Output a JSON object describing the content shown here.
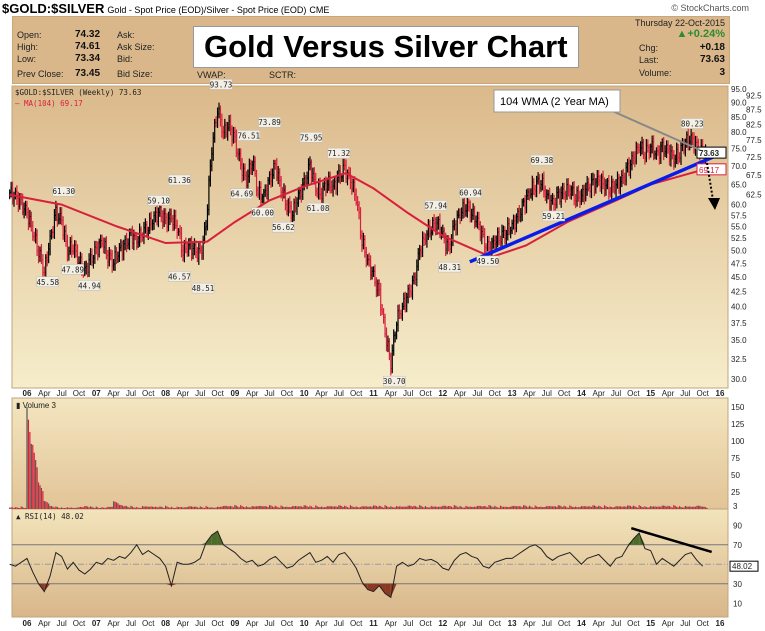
{
  "header": {
    "symbol": "$GOLD:$SILVER",
    "description": "Gold - Spot Price (EOD)/Silver - Spot Price (EOD)",
    "exchange": "CME",
    "credit": "© StockCharts.com",
    "date": "Thursday  22-Oct-2015",
    "pct_change": "▲+0.24%",
    "fields": [
      {
        "label": "Open:",
        "value": "74.32"
      },
      {
        "label": "High:",
        "value": "74.61"
      },
      {
        "label": "Low:",
        "value": "73.34"
      },
      {
        "label": "Prev Close:",
        "value": "73.45"
      }
    ],
    "fields2": [
      "Ask:",
      "Ask Size:",
      "Bid:",
      "Bid Size:"
    ],
    "fields3": [
      "VWAP:",
      "SCTR:"
    ],
    "right_fields": [
      {
        "label": "Chg:",
        "value": "+0.18"
      },
      {
        "label": "Last:",
        "value": "73.63"
      },
      {
        "label": "Volume:",
        "value": "3"
      }
    ]
  },
  "overlay_title": "Gold Versus Silver Chart",
  "colors": {
    "up": "#000000",
    "down": "#d8203a",
    "ma": "#d8203a",
    "trend": "#0a1de8",
    "rsi_up_fill": "#4e6b2a",
    "rsi_down_fill": "#8a3a22",
    "panel_top": "#dbb98b",
    "panel_bottom": "#f6edcb",
    "header_bg": "#d9b78b"
  },
  "chart_data": [
    {
      "type": "ohlc",
      "panel": "price",
      "legend": "$GOLD:$SILVER (Weekly) 73.63",
      "ma_legend": "MA(104) 69.17",
      "scale": "log",
      "ylim": [
        29,
        97
      ],
      "yticks": [
        "95.0",
        "92.5",
        "90.0",
        "87.5",
        "85.0",
        "82.5",
        "80.0",
        "77.5",
        "75.0",
        "72.5",
        "70.0",
        "67.5",
        "65.0",
        "62.5",
        "60.0",
        "57.5",
        "55.0",
        "52.5",
        "50.0",
        "47.5",
        "45.0",
        "42.5",
        "40.0",
        "37.5",
        "35.0",
        "32.5",
        "30.0"
      ],
      "xticks": [
        "06",
        "Apr",
        "Jul",
        "Oct",
        "07",
        "Apr",
        "Jul",
        "Oct",
        "08",
        "Apr",
        "Jul",
        "Oct",
        "09",
        "Apr",
        "Jul",
        "Oct",
        "10",
        "Apr",
        "Jul",
        "Oct",
        "11",
        "Apr",
        "Jul",
        "Oct",
        "12",
        "Apr",
        "Jul",
        "Oct",
        "13",
        "Apr",
        "Jul",
        "Oct",
        "14",
        "Apr",
        "Jul",
        "Oct",
        "15",
        "Apr",
        "Jul",
        "Oct",
        "16"
      ],
      "start": "2005-10",
      "monthly_close": [
        63,
        62,
        60,
        58,
        54,
        50,
        46,
        52,
        58,
        56,
        50,
        51,
        48,
        46,
        48,
        50,
        52,
        49,
        48,
        50,
        51,
        53,
        52,
        54,
        55,
        57,
        58,
        56,
        57,
        55,
        50,
        51,
        50,
        49,
        55,
        75,
        88,
        80,
        82,
        77,
        70,
        66,
        72,
        63,
        62,
        66,
        70,
        64,
        60,
        58,
        62,
        65,
        70,
        64,
        63,
        66,
        64,
        67,
        69,
        66,
        62,
        52,
        48,
        45,
        42,
        36,
        32,
        38,
        40,
        42,
        44,
        50,
        53,
        55,
        56,
        53,
        50,
        55,
        58,
        60,
        58,
        56,
        52,
        50,
        52,
        53,
        54,
        55,
        57,
        60,
        63,
        65,
        66,
        62,
        60,
        62,
        63,
        64,
        62,
        62,
        64,
        65,
        66,
        65,
        64,
        65,
        66,
        69,
        72,
        76,
        74,
        76,
        73,
        75,
        74,
        72,
        74,
        77,
        78,
        75,
        73.63
      ],
      "ma104": [
        [
          2005.75,
          62.4
        ],
        [
          2006.5,
          60
        ],
        [
          2007.3,
          55
        ],
        [
          2008.0,
          51.5
        ],
        [
          2008.6,
          51.8
        ],
        [
          2009.0,
          56
        ],
        [
          2009.5,
          61
        ],
        [
          2010.0,
          64.5
        ],
        [
          2010.6,
          68
        ],
        [
          2011.0,
          64
        ],
        [
          2011.5,
          58
        ],
        [
          2012.0,
          53
        ],
        [
          2012.7,
          48.7
        ],
        [
          2013.2,
          51
        ],
        [
          2013.8,
          56
        ],
        [
          2014.5,
          61
        ],
        [
          2015.0,
          65
        ],
        [
          2015.8,
          69.17
        ]
      ],
      "last_price_tag": "73.63",
      "ma_tag": "69.17",
      "point_labels": [
        {
          "t": 2006.3,
          "v": 45.58,
          "pos": "below"
        },
        {
          "t": 2006.53,
          "v": 61.3,
          "pos": "above"
        },
        {
          "t": 2006.66,
          "v": 47.89,
          "pos": "below"
        },
        {
          "t": 2006.9,
          "v": 44.94,
          "pos": "below"
        },
        {
          "t": 2007.9,
          "v": 59.1,
          "pos": "above"
        },
        {
          "t": 2008.2,
          "v": 61.36,
          "pos": "above"
        },
        {
          "t": 2008.2,
          "v": 46.57,
          "pos": "below"
        },
        {
          "t": 2008.54,
          "v": 48.51,
          "pos": "below"
        },
        {
          "t": 2008.8,
          "v": 93.73,
          "pos": "above"
        },
        {
          "t": 2009.1,
          "v": 64.69,
          "pos": "below"
        },
        {
          "t": 2009.2,
          "v": 76.51,
          "pos": "above"
        },
        {
          "t": 2009.4,
          "v": 60.0,
          "pos": "below"
        },
        {
          "t": 2009.5,
          "v": 73.89,
          "pos": "above"
        },
        {
          "t": 2009.7,
          "v": 56.62,
          "pos": "below"
        },
        {
          "t": 2010.1,
          "v": 75.95,
          "pos": "above"
        },
        {
          "t": 2010.2,
          "v": 61.08,
          "pos": "below"
        },
        {
          "t": 2010.5,
          "v": 71.32,
          "pos": "above"
        },
        {
          "t": 2011.3,
          "v": 30.7,
          "pos": "below"
        },
        {
          "t": 2011.9,
          "v": 57.94,
          "pos": "above"
        },
        {
          "t": 2012.1,
          "v": 48.31,
          "pos": "below"
        },
        {
          "t": 2012.4,
          "v": 60.94,
          "pos": "above"
        },
        {
          "t": 2012.65,
          "v": 49.5,
          "pos": "below"
        },
        {
          "t": 2013.43,
          "v": 69.38,
          "pos": "above"
        },
        {
          "t": 2013.6,
          "v": 59.21,
          "pos": "below"
        },
        {
          "t": 2015.6,
          "v": 80.23,
          "pos": "above"
        }
      ],
      "trendline": [
        [
          2012.39,
          47.8
        ],
        [
          2015.97,
          73.1
        ]
      ],
      "annotation": "104 WMA (2 Year MA)"
    },
    {
      "type": "bar",
      "panel": "volume",
      "legend": "Volume 3",
      "ylim": [
        0,
        160
      ],
      "yticks": [
        "150",
        "125",
        "100",
        "75",
        "50",
        "25"
      ],
      "last_tag": "3",
      "monthly_volume": [
        2,
        2,
        3,
        150,
        95,
        40,
        12,
        4,
        3,
        2,
        3,
        2,
        3,
        4,
        3,
        3,
        3,
        4,
        12,
        6,
        4,
        4,
        3,
        5,
        4,
        3,
        3,
        4,
        3,
        4,
        3,
        4,
        3,
        3,
        4,
        3,
        4,
        5,
        4,
        5,
        5,
        4,
        5,
        5,
        4,
        5,
        4,
        5,
        4,
        5,
        4,
        5,
        4,
        5,
        4,
        5,
        4,
        5,
        4,
        5,
        4,
        5,
        4,
        5,
        4,
        5,
        4,
        5,
        4,
        5,
        4,
        5,
        4,
        5,
        4,
        5,
        4,
        5,
        4,
        5,
        4,
        5,
        4,
        5,
        4,
        5,
        4,
        5,
        4,
        5,
        4,
        5,
        4,
        5,
        4,
        5,
        4,
        5,
        4,
        5,
        4,
        5,
        4,
        5,
        4,
        5,
        4,
        5,
        4,
        5,
        4,
        5,
        4,
        5,
        4,
        5,
        4,
        5,
        4,
        5,
        3
      ]
    },
    {
      "type": "line",
      "panel": "rsi",
      "legend": "RSI(14) 48.02",
      "ylim": [
        0,
        100
      ],
      "yticks": [
        "90",
        "70",
        "30",
        "10"
      ],
      "levels": [
        70,
        50,
        30
      ],
      "last_tag": "48.02",
      "monthly_rsi": [
        50,
        48,
        52,
        56,
        42,
        30,
        22,
        38,
        62,
        58,
        45,
        52,
        44,
        40,
        45,
        52,
        50,
        56,
        54,
        58,
        56,
        62,
        70,
        60,
        64,
        60,
        56,
        48,
        28,
        52,
        50,
        50,
        52,
        56,
        72,
        80,
        84,
        70,
        66,
        62,
        56,
        52,
        54,
        48,
        50,
        55,
        58,
        52,
        46,
        48,
        54,
        58,
        62,
        52,
        54,
        58,
        52,
        60,
        62,
        55,
        46,
        32,
        24,
        22,
        28,
        20,
        16,
        48,
        52,
        48,
        50,
        56,
        54,
        55,
        52,
        46,
        44,
        54,
        60,
        62,
        58,
        56,
        48,
        46,
        52,
        54,
        56,
        56,
        60,
        64,
        68,
        70,
        66,
        58,
        54,
        58,
        60,
        62,
        56,
        50,
        56,
        58,
        60,
        54,
        48,
        56,
        58,
        68,
        76,
        82,
        66,
        64,
        50,
        56,
        52,
        48,
        54,
        60,
        62,
        54,
        48.02
      ],
      "trendline": [
        [
          2014.72,
          87
        ],
        [
          2015.88,
          62.6
        ]
      ]
    }
  ]
}
